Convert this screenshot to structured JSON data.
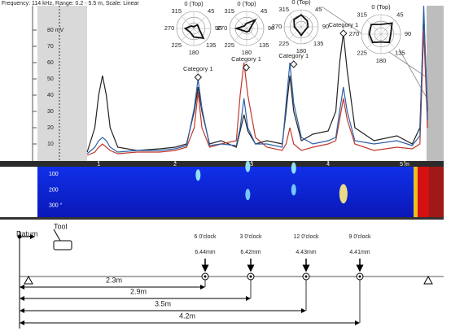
{
  "chart_data": [
    {
      "type": "line",
      "title": "Frequency: 114 kHz, Range: 0.2 - 5.5 m, Scale: Linear",
      "x": [
        0.85,
        0.95,
        1.0,
        1.05,
        1.1,
        1.15,
        1.25,
        1.5,
        1.8,
        2.0,
        2.15,
        2.25,
        2.3,
        2.35,
        2.45,
        2.6,
        2.8,
        2.85,
        2.9,
        2.95,
        3.05,
        3.2,
        3.4,
        3.45,
        3.5,
        3.55,
        3.65,
        3.8,
        4.0,
        4.1,
        4.15,
        4.2,
        4.25,
        4.35,
        4.6,
        4.9,
        5.1,
        5.2,
        5.25,
        5.3
      ],
      "series": [
        {
          "color": "#222222",
          "values": [
            5,
            20,
            40,
            52,
            40,
            20,
            8,
            6,
            7,
            8,
            10,
            30,
            45,
            30,
            10,
            12,
            8,
            18,
            28,
            18,
            10,
            12,
            10,
            30,
            52,
            30,
            12,
            16,
            18,
            30,
            60,
            78,
            55,
            20,
            12,
            15,
            10,
            20,
            90,
            30
          ]
        },
        {
          "color": "#c0392b",
          "values": [
            3,
            5,
            8,
            10,
            8,
            6,
            4,
            5,
            5,
            6,
            8,
            20,
            42,
            20,
            8,
            10,
            12,
            40,
            60,
            40,
            14,
            8,
            6,
            10,
            20,
            10,
            6,
            8,
            10,
            12,
            25,
            38,
            25,
            10,
            6,
            8,
            7,
            10,
            80,
            20
          ]
        },
        {
          "color": "#2e5fa8",
          "values": [
            4,
            8,
            12,
            14,
            12,
            8,
            5,
            6,
            6,
            7,
            9,
            32,
            50,
            32,
            9,
            10,
            9,
            20,
            38,
            20,
            10,
            10,
            8,
            35,
            60,
            35,
            14,
            10,
            12,
            14,
            30,
            45,
            30,
            12,
            10,
            12,
            9,
            15,
            95,
            25
          ]
        }
      ],
      "xlim": [
        0.2,
        5.5
      ],
      "xticks": [
        1,
        2,
        3,
        4,
        {
          "value": 5,
          "label": "5 m"
        }
      ],
      "ylim": [
        0,
        95
      ],
      "yticks": [
        {
          "value": 80,
          "label": "80 mV"
        },
        70,
        60,
        50,
        40,
        30,
        20,
        10
      ],
      "annotations": [
        {
          "text": "Category 1",
          "x": 2.3,
          "y": 51
        },
        {
          "text": "Category 1",
          "x": 2.93,
          "y": 57
        },
        {
          "text": "Category 1",
          "x": 3.55,
          "y": 59
        },
        {
          "text": "Category 1",
          "x": 4.2,
          "y": 78
        }
      ]
    },
    {
      "type": "radar",
      "categories": [
        "0 (Top)",
        "45",
        "90",
        "135",
        "180",
        "225",
        "270",
        "315"
      ],
      "values": [
        0.1,
        0.3,
        0.3,
        0.8,
        0.5,
        0.3,
        0.5,
        0.2
      ],
      "rlim": [
        0,
        1
      ]
    },
    {
      "type": "radar",
      "categories": [
        "0 (Top)",
        "45",
        "90",
        "135",
        "180",
        "225",
        "270",
        "315"
      ],
      "values": [
        0.3,
        0.7,
        0.2,
        0.2,
        0.2,
        0.2,
        0.6,
        0.2
      ],
      "rlim": [
        0,
        1
      ]
    },
    {
      "type": "radar",
      "categories": [
        "0 (Top)",
        "45",
        "90",
        "135",
        "180",
        "225",
        "270",
        "315"
      ],
      "values": [
        0.7,
        0.5,
        0.4,
        0.3,
        0.5,
        0.3,
        0.4,
        0.6
      ],
      "rlim": [
        0,
        1
      ]
    },
    {
      "type": "radar",
      "categories": [
        "0 (Top)",
        "45",
        "90",
        "135",
        "180",
        "225",
        "270",
        "315"
      ],
      "values": [
        0.5,
        0.8,
        0.5,
        0.6,
        0.4,
        0.6,
        0.6,
        0.7
      ],
      "rlim": [
        0,
        1
      ]
    },
    {
      "type": "heatmap",
      "xlim": [
        0.2,
        5.5
      ],
      "ylim": [
        20,
        360
      ],
      "yticks": [
        100,
        200,
        {
          "value": 300,
          "label": "300 °"
        }
      ],
      "x": [
        2.3,
        2.95,
        2.95,
        3.55,
        3.55,
        4.2
      ],
      "values": [
        105,
        50,
        230,
        60,
        200,
        225
      ],
      "colors": [
        "#9ff3ff",
        "#9ff3ff",
        "#7fd8ff",
        "#9ff3ff",
        "#7fd8ff",
        "#fff080"
      ]
    }
  ],
  "diagram": {
    "datum": "Datum",
    "tool": "Tool",
    "defects": [
      {
        "clock": "6 0'clock",
        "depth": "6.44mm",
        "distance": "2.3m"
      },
      {
        "clock": "3 0'clock",
        "depth": "6.42mm",
        "distance": "2.9m"
      },
      {
        "clock": "12 0'clock",
        "depth": "4.43mm",
        "distance": "3.5m"
      },
      {
        "clock": "9 0'clock",
        "depth": "4.41mm",
        "distance": "4.2m"
      }
    ]
  }
}
